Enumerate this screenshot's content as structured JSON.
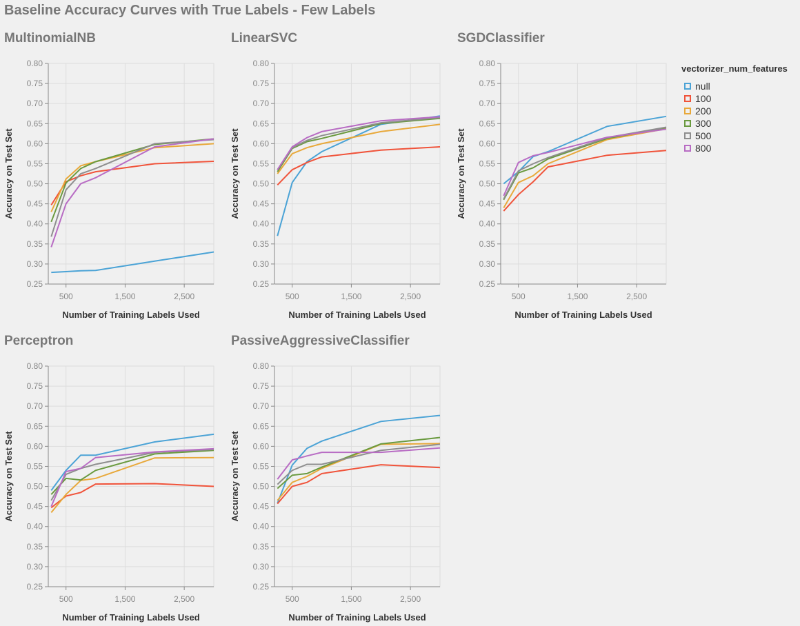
{
  "title": "Baseline Accuracy Curves with True Labels - Few Labels",
  "legend": {
    "title": "vectorizer_num_features",
    "placement": "top-right",
    "entries": [
      {
        "label": "null",
        "color": "#4ba3d6"
      },
      {
        "label": "100",
        "color": "#f0533a"
      },
      {
        "label": "200",
        "color": "#e8a83a"
      },
      {
        "label": "300",
        "color": "#6a9a3f"
      },
      {
        "label": "500",
        "color": "#8e8e8e"
      },
      {
        "label": "800",
        "color": "#b86cc4"
      }
    ]
  },
  "axes": {
    "x_ticks": [
      "500",
      "1,500",
      "2,500"
    ],
    "x_tick_values": [
      500,
      1500,
      2500
    ],
    "y_ticks": [
      "0.80",
      "0.75",
      "0.70",
      "0.65",
      "0.60",
      "0.55",
      "0.50",
      "0.45",
      "0.40",
      "0.35",
      "0.30",
      "0.25"
    ],
    "y_tick_values": [
      0.8,
      0.75,
      0.7,
      0.65,
      0.6,
      0.55,
      0.5,
      0.45,
      0.4,
      0.35,
      0.3,
      0.25
    ]
  },
  "chart_data": [
    {
      "type": "line",
      "title": "MultinomialNB",
      "xlabel": "Number of Training Labels Used",
      "ylabel": "Accuracy on Test Set",
      "xlim": [
        200,
        3000
      ],
      "ylim": [
        0.25,
        0.8
      ],
      "grid": true,
      "x": [
        250,
        500,
        750,
        1000,
        2000,
        3000
      ],
      "series": [
        {
          "name": "null",
          "color": "#4ba3d6",
          "values": [
            0.279,
            0.281,
            0.283,
            0.284,
            0.307,
            0.33
          ]
        },
        {
          "name": "100",
          "color": "#f0533a",
          "values": [
            0.447,
            0.505,
            0.52,
            0.53,
            0.55,
            0.556
          ]
        },
        {
          "name": "200",
          "color": "#e8a83a",
          "values": [
            0.43,
            0.512,
            0.545,
            0.555,
            0.59,
            0.6
          ]
        },
        {
          "name": "300",
          "color": "#6a9a3f",
          "values": [
            0.405,
            0.502,
            0.538,
            0.555,
            0.598,
            0.612
          ]
        },
        {
          "name": "500",
          "color": "#8e8e8e",
          "values": [
            0.368,
            0.485,
            0.525,
            0.538,
            0.6,
            0.61
          ]
        },
        {
          "name": "800",
          "color": "#b86cc4",
          "values": [
            0.342,
            0.45,
            0.5,
            0.515,
            0.592,
            0.612
          ]
        }
      ]
    },
    {
      "type": "line",
      "title": "LinearSVC",
      "xlabel": "Number of Training Labels Used",
      "ylabel": "Accuracy on Test Set",
      "xlim": [
        200,
        3000
      ],
      "ylim": [
        0.25,
        0.8
      ],
      "grid": true,
      "x": [
        250,
        500,
        750,
        1000,
        2000,
        3000
      ],
      "series": [
        {
          "name": "null",
          "color": "#4ba3d6",
          "values": [
            0.37,
            0.503,
            0.555,
            0.58,
            0.648,
            0.669
          ]
        },
        {
          "name": "100",
          "color": "#f0533a",
          "values": [
            0.497,
            0.535,
            0.553,
            0.567,
            0.584,
            0.592
          ]
        },
        {
          "name": "200",
          "color": "#e8a83a",
          "values": [
            0.525,
            0.575,
            0.59,
            0.6,
            0.63,
            0.648
          ]
        },
        {
          "name": "300",
          "color": "#6a9a3f",
          "values": [
            0.53,
            0.588,
            0.605,
            0.613,
            0.65,
            0.663
          ]
        },
        {
          "name": "500",
          "color": "#8e8e8e",
          "values": [
            0.535,
            0.59,
            0.608,
            0.62,
            0.652,
            0.665
          ]
        },
        {
          "name": "800",
          "color": "#b86cc4",
          "values": [
            0.535,
            0.592,
            0.615,
            0.63,
            0.657,
            0.667
          ]
        }
      ]
    },
    {
      "type": "line",
      "title": "SGDClassifier",
      "xlabel": "Number of Training Labels Used",
      "ylabel": "Accuracy on Test Set",
      "xlim": [
        200,
        3000
      ],
      "ylim": [
        0.25,
        0.8
      ],
      "grid": true,
      "x": [
        250,
        500,
        750,
        1000,
        2000,
        3000
      ],
      "series": [
        {
          "name": "null",
          "color": "#4ba3d6",
          "values": [
            0.5,
            0.53,
            0.568,
            0.58,
            0.643,
            0.668
          ]
        },
        {
          "name": "100",
          "color": "#f0533a",
          "values": [
            0.432,
            0.473,
            0.505,
            0.542,
            0.571,
            0.583
          ]
        },
        {
          "name": "200",
          "color": "#e8a83a",
          "values": [
            0.44,
            0.503,
            0.52,
            0.55,
            0.61,
            0.637
          ]
        },
        {
          "name": "300",
          "color": "#6a9a3f",
          "values": [
            0.46,
            0.527,
            0.54,
            0.562,
            0.613,
            0.64
          ]
        },
        {
          "name": "500",
          "color": "#8e8e8e",
          "values": [
            0.462,
            0.532,
            0.55,
            0.565,
            0.615,
            0.641
          ]
        },
        {
          "name": "800",
          "color": "#b86cc4",
          "values": [
            0.47,
            0.553,
            0.57,
            0.578,
            0.616,
            0.636
          ]
        }
      ]
    },
    {
      "type": "line",
      "title": "Perceptron",
      "xlabel": "Number of Training Labels Used",
      "ylabel": "Accuracy on Test Set",
      "xlim": [
        200,
        3000
      ],
      "ylim": [
        0.25,
        0.8
      ],
      "grid": true,
      "x": [
        250,
        500,
        750,
        1000,
        2000,
        3000
      ],
      "series": [
        {
          "name": "null",
          "color": "#4ba3d6",
          "values": [
            0.49,
            0.54,
            0.578,
            0.578,
            0.611,
            0.63
          ]
        },
        {
          "name": "100",
          "color": "#f0533a",
          "values": [
            0.447,
            0.476,
            0.485,
            0.506,
            0.507,
            0.5
          ]
        },
        {
          "name": "200",
          "color": "#e8a83a",
          "values": [
            0.435,
            0.48,
            0.515,
            0.52,
            0.571,
            0.572
          ]
        },
        {
          "name": "300",
          "color": "#6a9a3f",
          "values": [
            0.48,
            0.52,
            0.516,
            0.54,
            0.581,
            0.59
          ]
        },
        {
          "name": "500",
          "color": "#8e8e8e",
          "values": [
            0.465,
            0.53,
            0.545,
            0.555,
            0.585,
            0.592
          ]
        },
        {
          "name": "800",
          "color": "#b86cc4",
          "values": [
            0.45,
            0.537,
            0.545,
            0.572,
            0.586,
            0.594
          ]
        }
      ]
    },
    {
      "type": "line",
      "title": "PassiveAggressiveClassifier",
      "xlabel": "Number of Training Labels Used",
      "ylabel": "Accuracy on Test Set",
      "xlim": [
        200,
        3000
      ],
      "ylim": [
        0.25,
        0.8
      ],
      "grid": true,
      "x": [
        250,
        500,
        750,
        1000,
        2000,
        3000
      ],
      "series": [
        {
          "name": "null",
          "color": "#4ba3d6",
          "values": [
            0.458,
            0.553,
            0.595,
            0.613,
            0.662,
            0.677
          ]
        },
        {
          "name": "100",
          "color": "#f0533a",
          "values": [
            0.457,
            0.5,
            0.51,
            0.532,
            0.554,
            0.547
          ]
        },
        {
          "name": "200",
          "color": "#e8a83a",
          "values": [
            0.465,
            0.51,
            0.525,
            0.545,
            0.605,
            0.607
          ]
        },
        {
          "name": "300",
          "color": "#6a9a3f",
          "values": [
            0.495,
            0.528,
            0.532,
            0.548,
            0.606,
            0.622
          ]
        },
        {
          "name": "500",
          "color": "#8e8e8e",
          "values": [
            0.505,
            0.54,
            0.555,
            0.555,
            0.59,
            0.605
          ]
        },
        {
          "name": "800",
          "color": "#b86cc4",
          "values": [
            0.518,
            0.566,
            0.576,
            0.585,
            0.585,
            0.596
          ]
        }
      ]
    }
  ]
}
